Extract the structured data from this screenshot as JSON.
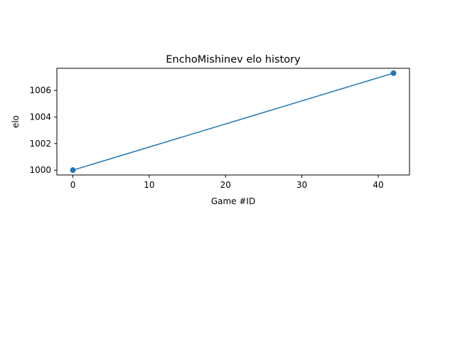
{
  "chart_data": {
    "type": "line",
    "title": "EnchoMishinev elo history",
    "xlabel": "Game #ID",
    "ylabel": "elo",
    "x": [
      0,
      42
    ],
    "series": [
      {
        "values": [
          1000,
          1007.3
        ],
        "color": "#1f77b4",
        "marker": "circle"
      }
    ],
    "xlim": [
      -2.1,
      44.1
    ],
    "ylim": [
      999.635,
      1007.665
    ],
    "xticks": [
      0,
      10,
      20,
      30,
      40
    ],
    "xtick_labels": [
      "0",
      "10",
      "20",
      "30",
      "40"
    ],
    "yticks": [
      1000,
      1002,
      1004,
      1006
    ],
    "ytick_labels": [
      "1000",
      "1002",
      "1004",
      "1006"
    ],
    "grid": false,
    "legend": "none"
  }
}
